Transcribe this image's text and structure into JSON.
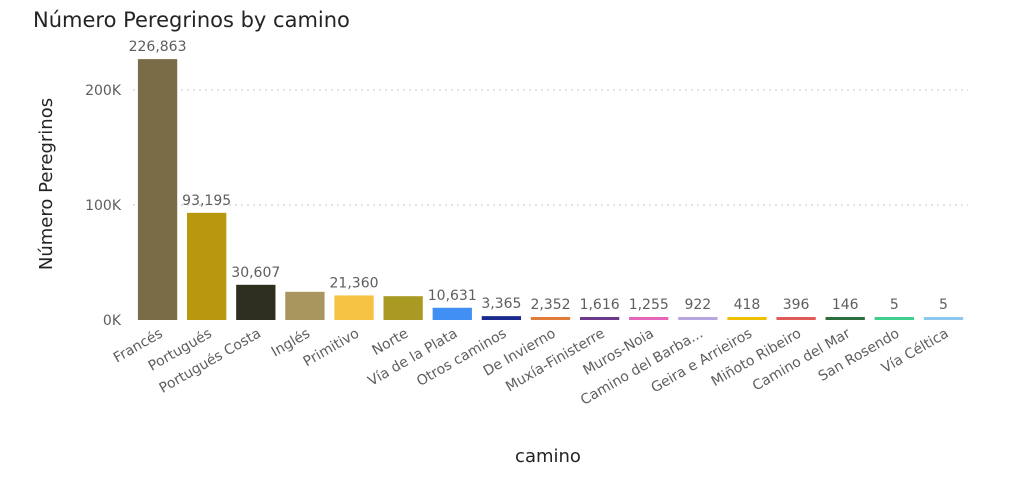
{
  "chart_data": {
    "type": "bar",
    "title": "Número Peregrinos by camino",
    "xlabel": "camino",
    "ylabel": "Número Peregrinos",
    "ylim": [
      0,
      240000
    ],
    "yticks": [
      {
        "value": 0,
        "label": "0K"
      },
      {
        "value": 100000,
        "label": "100K"
      },
      {
        "value": 200000,
        "label": "200K"
      }
    ],
    "grid": true,
    "categories": [
      "Francés",
      "Portugués",
      "Portugués Costa",
      "Inglés",
      "Primitivo",
      "Norte",
      "Vía de la Plata",
      "Otros caminos",
      "De Invierno",
      "Muxía-Finisterre",
      "Muros-Noia",
      "Camino del Barba...",
      "Geira e Arrieiros",
      "Miñoto Ribeiro",
      "Camino del Mar",
      "San Rosendo",
      "Vía Céltica"
    ],
    "values": [
      226863,
      93195,
      30607,
      24500,
      21360,
      20700,
      10631,
      3365,
      2352,
      1616,
      1255,
      922,
      418,
      396,
      146,
      5,
      5
    ],
    "data_labels": [
      "226,863",
      "93,195",
      "30,607",
      "",
      "21,360",
      "",
      "10,631",
      "3,365",
      "2,352",
      "1,616",
      "1,255",
      "922",
      "418",
      "396",
      "146",
      "5",
      "5"
    ],
    "colors": [
      "#7b6c48",
      "#b8980f",
      "#2f2f1f",
      "#a8965e",
      "#f5c242",
      "#a89a22",
      "#3f8ff5",
      "#1a2a8c",
      "#e07b39",
      "#6b3a8a",
      "#e565b8",
      "#b8a6e0",
      "#f0c000",
      "#e05a5a",
      "#2d6e3e",
      "#3ecf8e",
      "#8ec8f0"
    ]
  }
}
